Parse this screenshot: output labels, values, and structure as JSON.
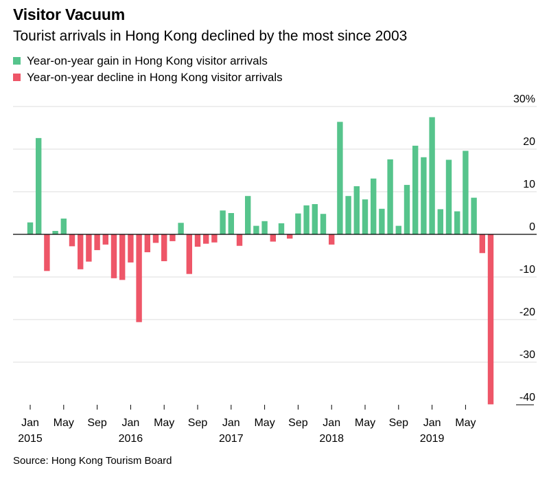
{
  "header": {
    "title": "Visitor Vacuum",
    "subtitle": "Tourist arrivals in Hong Kong declined by the most since 2003"
  },
  "legend": [
    {
      "label": "Year-on-year gain in Hong Kong visitor arrivals",
      "color": "#56c48c"
    },
    {
      "label": "Year-on-year decline in Hong Kong visitor arrivals",
      "color": "#ee5668"
    }
  ],
  "footer": {
    "source": "Source: Hong Kong Tourism Board"
  },
  "chart_data": {
    "type": "bar",
    "title": "Visitor Vacuum",
    "subtitle": "Tourist arrivals in Hong Kong declined by the most since 2003",
    "xlabel": "",
    "ylabel": "",
    "unit": "%",
    "ylim": [
      -40,
      30
    ],
    "yticks": [
      30,
      20,
      10,
      0,
      -10,
      -20,
      -30,
      -40
    ],
    "ytick_labels": [
      "30%",
      "20",
      "10",
      "0",
      "-10",
      "-20",
      "-30",
      "-40"
    ],
    "grid": true,
    "axis_position": "right",
    "positive_color": "#56c48c",
    "negative_color": "#ee5668",
    "categories": [
      "Jan 2015",
      "Feb 2015",
      "Mar 2015",
      "Apr 2015",
      "May 2015",
      "Jun 2015",
      "Jul 2015",
      "Aug 2015",
      "Sep 2015",
      "Oct 2015",
      "Nov 2015",
      "Dec 2015",
      "Jan 2016",
      "Feb 2016",
      "Mar 2016",
      "Apr 2016",
      "May 2016",
      "Jun 2016",
      "Jul 2016",
      "Aug 2016",
      "Sep 2016",
      "Oct 2016",
      "Nov 2016",
      "Dec 2016",
      "Jan 2017",
      "Feb 2017",
      "Mar 2017",
      "Apr 2017",
      "May 2017",
      "Jun 2017",
      "Jul 2017",
      "Aug 2017",
      "Sep 2017",
      "Oct 2017",
      "Nov 2017",
      "Dec 2017",
      "Jan 2018",
      "Feb 2018",
      "Mar 2018",
      "Apr 2018",
      "May 2018",
      "Jun 2018",
      "Jul 2018",
      "Aug 2018",
      "Sep 2018",
      "Oct 2018",
      "Nov 2018",
      "Dec 2018",
      "Jan 2019",
      "Feb 2019",
      "Mar 2019",
      "Apr 2019",
      "May 2019",
      "Jun 2019",
      "Jul 2019",
      "Aug 2019"
    ],
    "values": [
      2.8,
      22.6,
      -8.6,
      0.8,
      3.7,
      -2.8,
      -8.2,
      -6.4,
      -3.7,
      -2.4,
      -10.3,
      -10.7,
      -6.6,
      -20.6,
      -4.2,
      -2.0,
      -6.3,
      -1.6,
      2.7,
      -9.3,
      -2.9,
      -2.2,
      -1.9,
      5.6,
      5.0,
      -2.7,
      9.0,
      2.0,
      3.1,
      -1.7,
      2.6,
      -1.0,
      4.9,
      6.8,
      7.1,
      4.8,
      -2.4,
      26.4,
      9.0,
      11.3,
      8.2,
      13.1,
      6.0,
      17.6,
      2.0,
      11.6,
      20.8,
      18.1,
      27.5,
      5.9,
      17.5,
      5.4,
      19.6,
      8.6,
      -4.4,
      -39.9
    ],
    "x_tick_labels": [
      {
        "month": "Jan",
        "year": "2015",
        "index": 0
      },
      {
        "month": "May",
        "year": "",
        "index": 4
      },
      {
        "month": "Sep",
        "year": "",
        "index": 8
      },
      {
        "month": "Jan",
        "year": "2016",
        "index": 12
      },
      {
        "month": "May",
        "year": "",
        "index": 16
      },
      {
        "month": "Sep",
        "year": "",
        "index": 20
      },
      {
        "month": "Jan",
        "year": "2017",
        "index": 24
      },
      {
        "month": "May",
        "year": "",
        "index": 28
      },
      {
        "month": "Sep",
        "year": "",
        "index": 32
      },
      {
        "month": "Jan",
        "year": "2018",
        "index": 36
      },
      {
        "month": "May",
        "year": "",
        "index": 40
      },
      {
        "month": "Sep",
        "year": "",
        "index": 44
      },
      {
        "month": "Jan",
        "year": "2019",
        "index": 48
      },
      {
        "month": "May",
        "year": "",
        "index": 52
      }
    ]
  }
}
